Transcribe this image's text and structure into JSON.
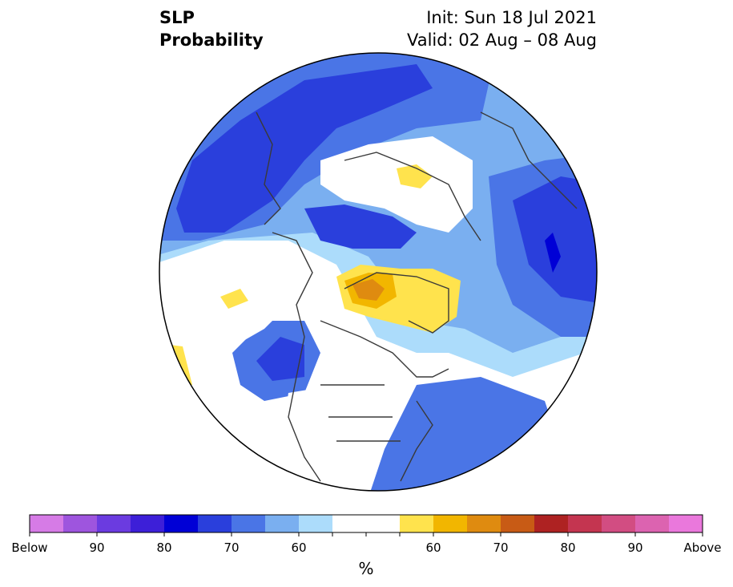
{
  "title": {
    "line1": "SLP",
    "line2": "Probability",
    "init": "Init: Sun 18 Jul 2021",
    "valid": "Valid: 02 Aug – 08 Aug"
  },
  "colorbar": {
    "unit": "%",
    "tick_labels": [
      "Below",
      "90",
      "80",
      "70",
      "60",
      "60",
      "70",
      "80",
      "90",
      "Above"
    ],
    "colors": [
      "#d67be6",
      "#9e55de",
      "#6b3be0",
      "#3d1fd8",
      "#0000d6",
      "#2a3fdc",
      "#4a75e6",
      "#7aaff0",
      "#acdcfb",
      "#ffffff",
      "#ffe34d",
      "#f2b600",
      "#df8b10",
      "#c85b15",
      "#ae2222",
      "#c43550",
      "#d24d82",
      "#dc63b0",
      "#ea78dc"
    ]
  }
}
